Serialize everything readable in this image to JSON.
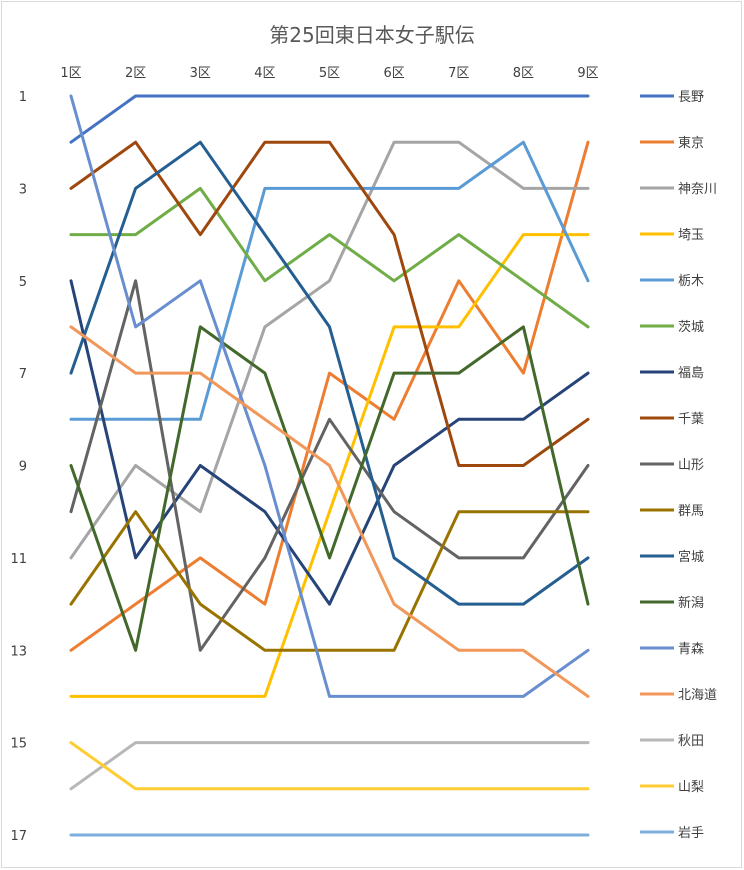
{
  "chart_data": {
    "type": "line",
    "title": "第25回東日本女子駅伝",
    "xlabel": "",
    "ylabel": "",
    "categories": [
      "1区",
      "2区",
      "3区",
      "4区",
      "5区",
      "6区",
      "7区",
      "8区",
      "9区"
    ],
    "y_ticks": [
      1,
      3,
      5,
      7,
      9,
      11,
      13,
      15,
      17
    ],
    "ylim": [
      1,
      17
    ],
    "y_reversed": true,
    "legend_position": "right",
    "grid": false,
    "series": [
      {
        "name": "長野",
        "color": "#4472C4",
        "values": [
          2,
          1,
          1,
          1,
          1,
          1,
          1,
          1,
          1
        ]
      },
      {
        "name": "東京",
        "color": "#ED7D31",
        "values": [
          13,
          12,
          11,
          12,
          7,
          8,
          5,
          7,
          2
        ]
      },
      {
        "name": "神奈川",
        "color": "#A5A5A5",
        "values": [
          11,
          9,
          10,
          6,
          5,
          2,
          2,
          3,
          3
        ]
      },
      {
        "name": "埼玉",
        "color": "#FFC000",
        "values": [
          14,
          14,
          14,
          14,
          10,
          6,
          6,
          4,
          4
        ]
      },
      {
        "name": "栃木",
        "color": "#5B9BD5",
        "values": [
          8,
          8,
          8,
          3,
          3,
          3,
          3,
          2,
          5
        ]
      },
      {
        "name": "茨城",
        "color": "#70AD47",
        "values": [
          4,
          4,
          3,
          5,
          4,
          5,
          4,
          5,
          6
        ]
      },
      {
        "name": "福島",
        "color": "#264478",
        "values": [
          5,
          11,
          9,
          10,
          12,
          9,
          8,
          8,
          7
        ]
      },
      {
        "name": "千葉",
        "color": "#9E480E",
        "values": [
          3,
          2,
          4,
          2,
          2,
          4,
          9,
          9,
          8
        ]
      },
      {
        "name": "山形",
        "color": "#636363",
        "values": [
          10,
          5,
          13,
          11,
          8,
          10,
          11,
          11,
          9
        ]
      },
      {
        "name": "群馬",
        "color": "#997300",
        "values": [
          12,
          10,
          12,
          13,
          13,
          13,
          10,
          10,
          10
        ]
      },
      {
        "name": "宮城",
        "color": "#255E91",
        "values": [
          7,
          3,
          2,
          4,
          6,
          11,
          12,
          12,
          11
        ]
      },
      {
        "name": "新潟",
        "color": "#43682B",
        "values": [
          9,
          13,
          6,
          7,
          11,
          7,
          7,
          6,
          12
        ]
      },
      {
        "name": "青森",
        "color": "#698ED0",
        "values": [
          1,
          6,
          5,
          9,
          14,
          14,
          14,
          14,
          13
        ]
      },
      {
        "name": "北海道",
        "color": "#F1975A",
        "values": [
          6,
          7,
          7,
          8,
          9,
          12,
          13,
          13,
          14
        ]
      },
      {
        "name": "秋田",
        "color": "#B7B7B7",
        "values": [
          16,
          15,
          15,
          15,
          15,
          15,
          15,
          15,
          15
        ]
      },
      {
        "name": "山梨",
        "color": "#FFCD33",
        "values": [
          15,
          16,
          16,
          16,
          16,
          16,
          16,
          16,
          16
        ]
      },
      {
        "name": "岩手",
        "color": "#7CAFDD",
        "values": [
          17,
          17,
          17,
          17,
          17,
          17,
          17,
          17,
          17
        ]
      }
    ]
  }
}
